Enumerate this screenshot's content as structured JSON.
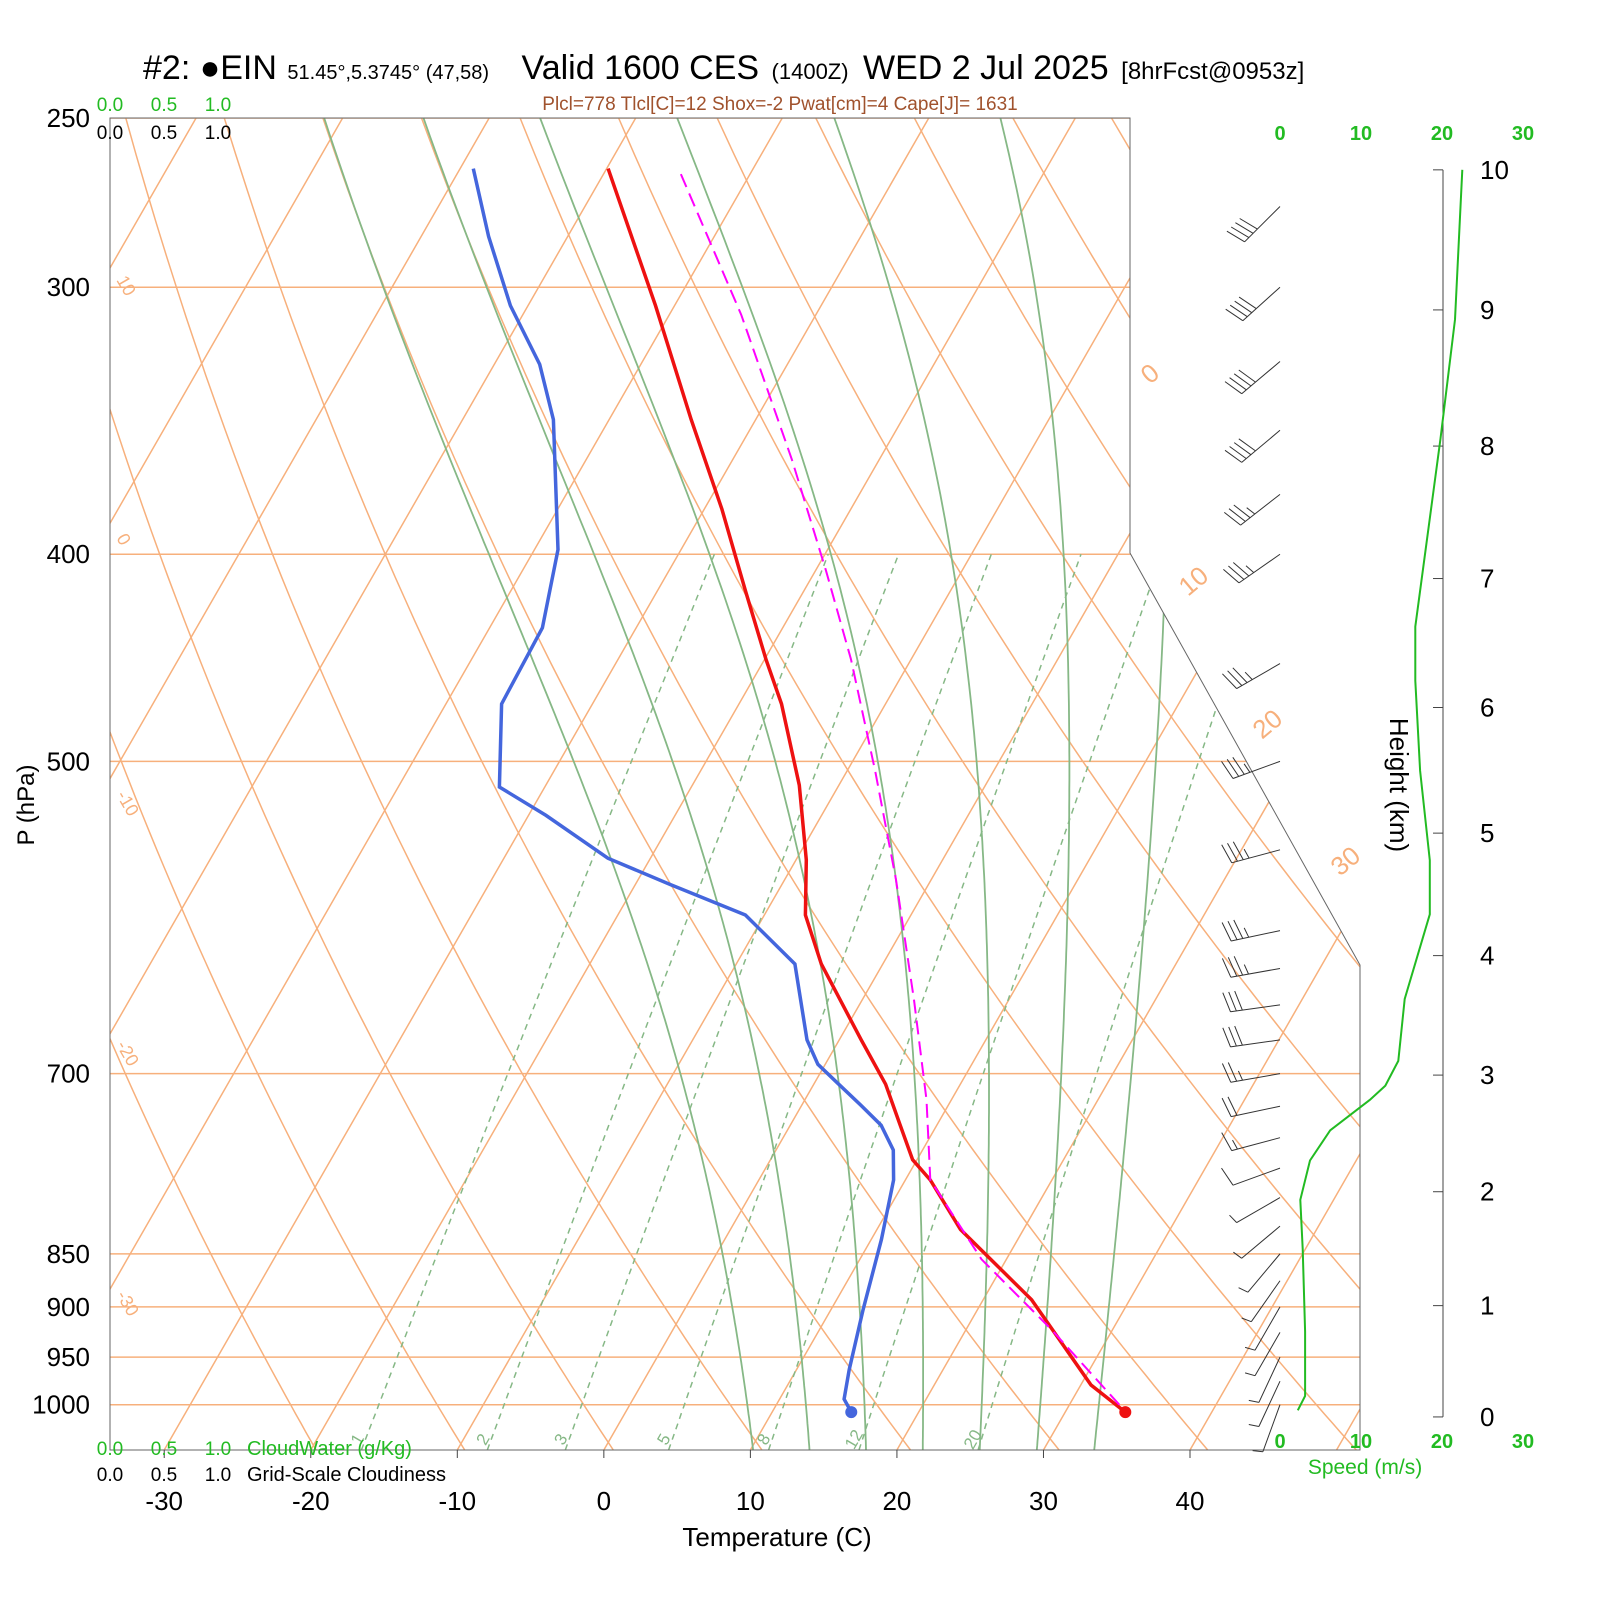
{
  "chart_data": {
    "type": "skewt",
    "title_parts": [
      "#2: ●EIN",
      "51.45°,5.3745° (47,58)",
      "Valid 1600 CES",
      "(1400Z)",
      "WED 2 Jul 2025",
      "[8hrFcst@0953z]"
    ],
    "subtitle": "Plcl=778 Tlcl[C]=12 Shox=-2 Pwat[cm]=4 Cape[J]= 1631",
    "x_label": "Temperature (C)",
    "y_label": "P (hPa)",
    "xlim": [
      -33.7,
      51.6
    ],
    "xticks": [
      -30,
      -20,
      -10,
      0,
      10,
      20,
      30,
      40
    ],
    "ylim": [
      1050,
      250
    ],
    "yticks": [
      250,
      300,
      400,
      500,
      700,
      850,
      900,
      950,
      1000
    ],
    "log_scale": true,
    "isotherms": [
      -80,
      -70,
      -60,
      -50,
      -40,
      -30,
      -20,
      -10,
      0,
      10,
      20,
      30,
      40,
      50
    ],
    "isotherm_labels": [
      0,
      10,
      20,
      30
    ],
    "dry_adiabats": [
      250,
      260,
      270,
      280,
      290,
      300,
      310,
      320,
      330,
      340,
      350,
      360,
      370,
      380,
      390,
      400,
      410,
      420,
      430,
      440,
      450,
      460
    ],
    "dry_adiabat_labels": [
      10,
      0,
      -10,
      -20,
      -30
    ],
    "moist_adiabats": [
      8,
      12,
      16,
      20,
      24,
      28,
      32
    ],
    "mixing_ratios": [
      1,
      2,
      3,
      5,
      8,
      12,
      20
    ],
    "background_color": "#f7b07c",
    "adiabat_color": "#86b886",
    "series": [
      {
        "color": "#ee1111",
        "marker": true,
        "pressure": [
          1008,
          979,
          893,
          828,
          785,
          768,
          740,
          708,
          675,
          622,
          590,
          556,
          513,
          470,
          448,
          416,
          381,
          346,
          306,
          264
        ],
        "values": [
          34.1,
          30.7,
          23.3,
          15.7,
          11.7,
          9.7,
          7.5,
          4.9,
          1.5,
          -4.2,
          -7.2,
          -9.3,
          -12.7,
          -17.1,
          -19.9,
          -24.0,
          -28.8,
          -34.4,
          -41.3,
          -49.9
        ]
      },
      {
        "color": "#4466dd",
        "marker": true,
        "pressure": [
          1008,
          994,
          963,
          903,
          837,
          785,
          760,
          740,
          724,
          708,
          693,
          675,
          622,
          590,
          571,
          555,
          530,
          514,
          470,
          433,
          398,
          346,
          326,
          306,
          284,
          264
        ],
        "values": [
          15.4,
          14.4,
          13.6,
          12.2,
          10.7,
          9.2,
          8.0,
          6.2,
          4.0,
          1.7,
          -0.5,
          -2.2,
          -6.0,
          -11.3,
          -17.6,
          -22.9,
          -28.8,
          -33.1,
          -36.2,
          -36.4,
          -38.4,
          -43.8,
          -46.9,
          -51.2,
          -55.4,
          -59.1
        ]
      },
      {
        "color": "#ff00ff",
        "dashed": true,
        "pressure": [
          1000,
          922,
          855,
          785,
          720,
          646,
          568,
          505,
          448,
          407,
          361,
          309,
          264
        ],
        "values": [
          33.4,
          25.8,
          18.3,
          11.7,
          8.3,
          3.5,
          -2.4,
          -8.1,
          -14.1,
          -19.3,
          -26.0,
          -35.1,
          -45.1
        ]
      }
    ],
    "wind": {
      "pressure": [
        1000,
        975,
        950,
        925,
        900,
        875,
        850,
        825,
        800,
        775,
        750,
        725,
        700,
        675,
        650,
        625,
        600,
        550,
        500,
        450,
        400,
        375,
        350,
        325,
        300,
        275
      ],
      "speed": [
        5,
        5,
        5,
        5,
        5,
        5,
        5,
        5,
        5,
        10,
        15,
        20,
        25,
        30,
        30,
        35,
        35,
        35,
        35,
        35,
        35,
        35,
        40,
        40,
        40,
        40
      ],
      "direction": [
        200,
        205,
        205,
        210,
        210,
        215,
        220,
        230,
        240,
        250,
        255,
        258,
        260,
        262,
        262,
        260,
        258,
        255,
        250,
        240,
        235,
        232,
        230,
        230,
        228,
        225
      ]
    },
    "speed_profile": {
      "x_label": "Speed (m/s)",
      "color": "#22bb22",
      "xlim": [
        0,
        30
      ],
      "xticks": [
        0,
        10,
        20,
        30
      ],
      "height": [
        0.06,
        0.19,
        0.77,
        1.5,
        1.93,
        2.27,
        2.53,
        2.79,
        2.91,
        3.12,
        3.64,
        4.34,
        4.78,
        5.5,
        6.21,
        6.63,
        8.05,
        8.93,
        10.0
      ],
      "values": [
        2.2,
        3.1,
        3.1,
        2.8,
        2.5,
        3.7,
        6.2,
        11.1,
        13.0,
        14.6,
        15.4,
        18.5,
        18.5,
        17.3,
        16.7,
        16.7,
        19.8,
        21.6,
        22.5
      ]
    },
    "height_axis": {
      "label": "Height (km)",
      "ticks": [
        0,
        1,
        2,
        3,
        4,
        5,
        6,
        7,
        8,
        9,
        10
      ]
    },
    "cloud_scales": [
      {
        "label": "CloudWater (g/Kg)",
        "color": "#22bb22",
        "xlim": [
          0,
          1
        ],
        "ticks": [
          {
            "value": 0,
            "label": "0.0"
          },
          {
            "value": 0.5,
            "label": "0.5"
          },
          {
            "value": 1,
            "label": "1.0"
          }
        ]
      },
      {
        "label": "Grid-Scale Cloudiness",
        "color": "#000000",
        "xlim": [
          0,
          1
        ],
        "ticks": [
          {
            "value": 0,
            "label": "0.0"
          },
          {
            "value": 0.5,
            "label": "0.5"
          },
          {
            "value": 1,
            "label": "1.0"
          }
        ]
      }
    ]
  }
}
